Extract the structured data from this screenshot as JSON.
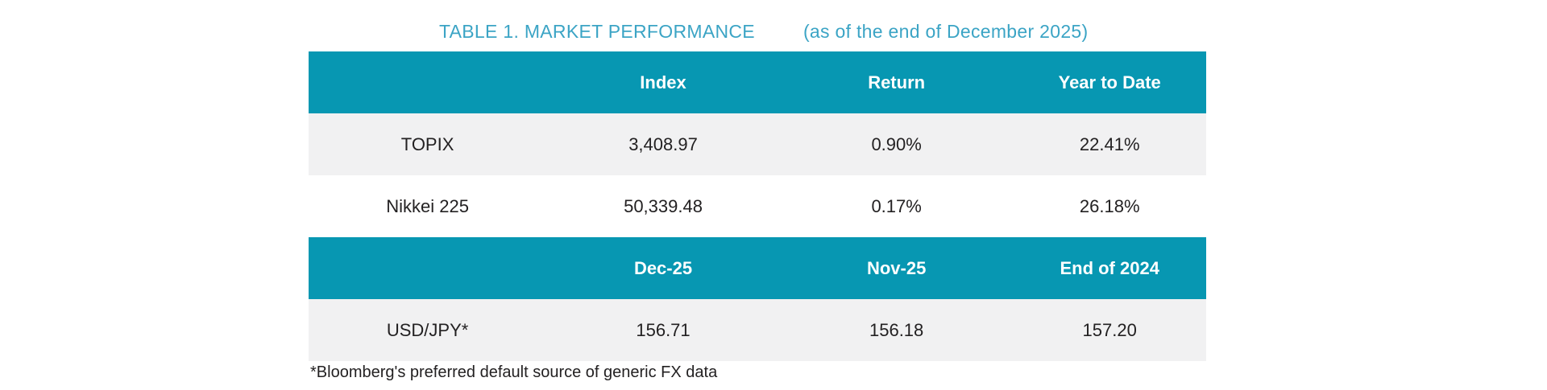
{
  "title": {
    "text": "TABLE 1. MARKET PERFORMANCE",
    "as_of": "(as of the end of December 2025)"
  },
  "colors": {
    "header_bg": "#0797B2",
    "alt_row_bg": "#F1F1F2",
    "title_color": "#3BA4C5",
    "header_text": "#FFFFFF",
    "body_text": "#232122"
  },
  "market_table": {
    "section1": {
      "headers": {
        "col0": "",
        "col1": "Index",
        "col2": "Return",
        "col3": "Year to Date"
      },
      "rows": [
        {
          "label": "TOPIX",
          "index": "3,408.97",
          "return": "0.90%",
          "ytd": "22.41%"
        },
        {
          "label": "Nikkei 225",
          "index": "50,339.48",
          "return": "0.17%",
          "ytd": "26.18%"
        }
      ]
    },
    "section2": {
      "headers": {
        "col0": "",
        "col1": "Dec-25",
        "col2": "Nov-25",
        "col3": "End of 2024"
      },
      "rows": [
        {
          "label": "USD/JPY*",
          "dec": "156.71",
          "nov": "156.18",
          "end2024": "157.20"
        }
      ]
    }
  },
  "footnote": "*Bloomberg's preferred default source of generic FX data"
}
